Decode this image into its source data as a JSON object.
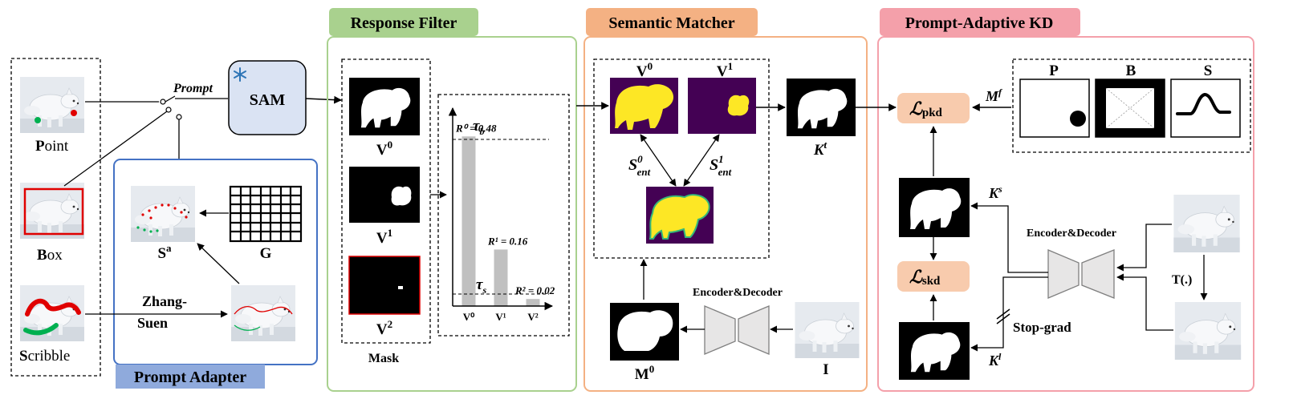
{
  "inputs": {
    "point": {
      "initial": "P",
      "rest": "oint"
    },
    "box": {
      "initial": "B",
      "rest": "ox"
    },
    "scribble": {
      "initial": "S",
      "rest": "cribble"
    }
  },
  "prompt_label": "Prompt",
  "sam_label": "SAM",
  "prompt_adapter": {
    "title": "Prompt Adapter",
    "sa": "S",
    "sa_sup": "a",
    "g": "G",
    "zhang_line1": "Zhang-",
    "zhang_line2": "Suen"
  },
  "response_filter": {
    "title": "Response Filter",
    "masks": [
      {
        "base": "V",
        "sup": "0"
      },
      {
        "base": "V",
        "sup": "1"
      },
      {
        "base": "V",
        "sup": "2"
      }
    ],
    "mask_label": "Mask",
    "tau_b": "τ",
    "tau_b_sub": "b",
    "tau_s": "τ",
    "tau_s_sub": "s"
  },
  "chart_data": {
    "type": "bar",
    "categories": [
      "V⁰",
      "V¹",
      "V²"
    ],
    "values": [
      0.48,
      0.16,
      0.02
    ],
    "data_labels": [
      "R⁰ = 0.48",
      "R¹ = 0.16",
      "R² = 0.02"
    ],
    "thresholds": [
      "τb",
      "τs"
    ],
    "ylim": [
      0,
      0.56
    ],
    "bar_color": "#c0c0c0"
  },
  "semantic_matcher": {
    "title": "Semantic Matcher",
    "v0": {
      "base": "V",
      "sup": "0"
    },
    "v1": {
      "base": "V",
      "sup": "1"
    },
    "s0": {
      "base": "S",
      "sup": "0",
      "sub": "ent"
    },
    "s1": {
      "base": "S",
      "sup": "1",
      "sub": "ent"
    },
    "kt": {
      "base": "K",
      "sup": "t"
    },
    "enc_dec": "Encoder&Decoder",
    "m0": {
      "base": "M",
      "sup": "0"
    },
    "i": "I"
  },
  "prompt_adaptive_kd": {
    "title": "Prompt-Adaptive KD",
    "l_pkd": {
      "base": "ℒ",
      "sub": "pkd"
    },
    "l_skd": {
      "base": "ℒ",
      "sub": "skd"
    },
    "mf": {
      "base": "M",
      "sup": "f"
    },
    "p": "P",
    "b": "B",
    "s": "S",
    "ks": {
      "base": "K",
      "sup": "s"
    },
    "kl": {
      "base": "K",
      "sup": "l"
    },
    "enc_dec": "Encoder&Decoder",
    "transform": "T(.)",
    "stop_grad": "Stop-grad"
  },
  "colors": {
    "response_filter": "#a9d18e",
    "semantic_matcher": "#f4b183",
    "prompt_adaptive_kd": "#f4a0aa",
    "prompt_adapter": "#4472c4",
    "prompt_adapter_title_bg": "#8faadc",
    "sam_fill": "#dae3f3",
    "loss_fill": "#f8cbad",
    "feature_purple": "#440154",
    "feature_yellow": "#fde725",
    "snowflake": "#2e75b6"
  }
}
